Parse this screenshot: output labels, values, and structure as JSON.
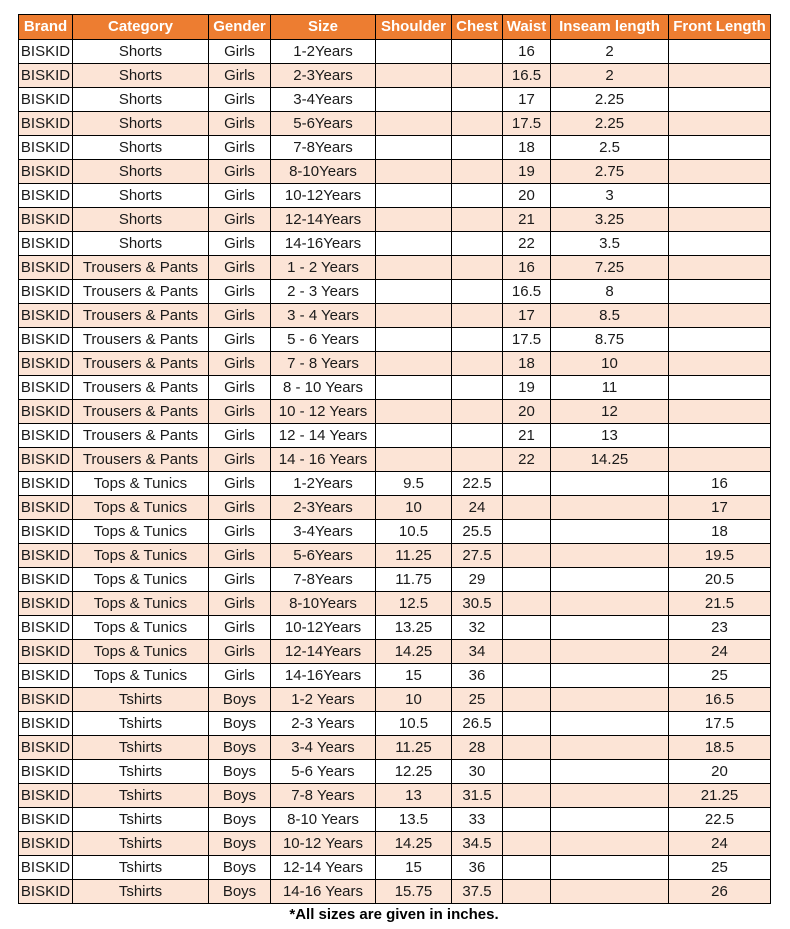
{
  "colors": {
    "header_bg": "#ED7D31",
    "header_text": "#FFFFFF",
    "row_alt_bg": "#FCE4D6",
    "row_bg": "#FFFFFF",
    "border": "#000000",
    "text": "#1A1A1A"
  },
  "footnote": "*All sizes are given in inches.",
  "table": {
    "columns": [
      "Brand",
      "Category",
      "Gender",
      "Size",
      "Shoulder",
      "Chest",
      "Waist",
      "Inseam length",
      "Front Length"
    ],
    "rows": [
      [
        "BISKID",
        "Shorts",
        "Girls",
        "1-2Years",
        "",
        "",
        "16",
        "2",
        ""
      ],
      [
        "BISKID",
        "Shorts",
        "Girls",
        "2-3Years",
        "",
        "",
        "16.5",
        "2",
        ""
      ],
      [
        "BISKID",
        "Shorts",
        "Girls",
        "3-4Years",
        "",
        "",
        "17",
        "2.25",
        ""
      ],
      [
        "BISKID",
        "Shorts",
        "Girls",
        "5-6Years",
        "",
        "",
        "17.5",
        "2.25",
        ""
      ],
      [
        "BISKID",
        "Shorts",
        "Girls",
        "7-8Years",
        "",
        "",
        "18",
        "2.5",
        ""
      ],
      [
        "BISKID",
        "Shorts",
        "Girls",
        "8-10Years",
        "",
        "",
        "19",
        "2.75",
        ""
      ],
      [
        "BISKID",
        "Shorts",
        "Girls",
        "10-12Years",
        "",
        "",
        "20",
        "3",
        ""
      ],
      [
        "BISKID",
        "Shorts",
        "Girls",
        "12-14Years",
        "",
        "",
        "21",
        "3.25",
        ""
      ],
      [
        "BISKID",
        "Shorts",
        "Girls",
        "14-16Years",
        "",
        "",
        "22",
        "3.5",
        ""
      ],
      [
        "BISKID",
        "Trousers & Pants",
        "Girls",
        "1 - 2 Years",
        "",
        "",
        "16",
        "7.25",
        ""
      ],
      [
        "BISKID",
        "Trousers & Pants",
        "Girls",
        "2 - 3 Years",
        "",
        "",
        "16.5",
        "8",
        ""
      ],
      [
        "BISKID",
        "Trousers & Pants",
        "Girls",
        "3 - 4 Years",
        "",
        "",
        "17",
        "8.5",
        ""
      ],
      [
        "BISKID",
        "Trousers & Pants",
        "Girls",
        "5 - 6 Years",
        "",
        "",
        "17.5",
        "8.75",
        ""
      ],
      [
        "BISKID",
        "Trousers & Pants",
        "Girls",
        "7 - 8 Years",
        "",
        "",
        "18",
        "10",
        ""
      ],
      [
        "BISKID",
        "Trousers & Pants",
        "Girls",
        "8 - 10 Years",
        "",
        "",
        "19",
        "11",
        ""
      ],
      [
        "BISKID",
        "Trousers & Pants",
        "Girls",
        "10 - 12 Years",
        "",
        "",
        "20",
        "12",
        ""
      ],
      [
        "BISKID",
        "Trousers & Pants",
        "Girls",
        "12 - 14 Years",
        "",
        "",
        "21",
        "13",
        ""
      ],
      [
        "BISKID",
        "Trousers & Pants",
        "Girls",
        "14 - 16 Years",
        "",
        "",
        "22",
        "14.25",
        ""
      ],
      [
        "BISKID",
        "Tops & Tunics",
        "Girls",
        "1-2Years",
        "9.5",
        "22.5",
        "",
        "",
        "16"
      ],
      [
        "BISKID",
        "Tops & Tunics",
        "Girls",
        "2-3Years",
        "10",
        "24",
        "",
        "",
        "17"
      ],
      [
        "BISKID",
        "Tops & Tunics",
        "Girls",
        "3-4Years",
        "10.5",
        "25.5",
        "",
        "",
        "18"
      ],
      [
        "BISKID",
        "Tops & Tunics",
        "Girls",
        "5-6Years",
        "11.25",
        "27.5",
        "",
        "",
        "19.5"
      ],
      [
        "BISKID",
        "Tops & Tunics",
        "Girls",
        "7-8Years",
        "11.75",
        "29",
        "",
        "",
        "20.5"
      ],
      [
        "BISKID",
        "Tops & Tunics",
        "Girls",
        "8-10Years",
        "12.5",
        "30.5",
        "",
        "",
        "21.5"
      ],
      [
        "BISKID",
        "Tops & Tunics",
        "Girls",
        "10-12Years",
        "13.25",
        "32",
        "",
        "",
        "23"
      ],
      [
        "BISKID",
        "Tops & Tunics",
        "Girls",
        "12-14Years",
        "14.25",
        "34",
        "",
        "",
        "24"
      ],
      [
        "BISKID",
        "Tops & Tunics",
        "Girls",
        "14-16Years",
        "15",
        "36",
        "",
        "",
        "25"
      ],
      [
        "BISKID",
        "Tshirts",
        "Boys",
        "1-2 Years",
        "10",
        "25",
        "",
        "",
        "16.5"
      ],
      [
        "BISKID",
        "Tshirts",
        "Boys",
        "2-3 Years",
        "10.5",
        "26.5",
        "",
        "",
        "17.5"
      ],
      [
        "BISKID",
        "Tshirts",
        "Boys",
        "3-4 Years",
        "11.25",
        "28",
        "",
        "",
        "18.5"
      ],
      [
        "BISKID",
        "Tshirts",
        "Boys",
        "5-6 Years",
        "12.25",
        "30",
        "",
        "",
        "20"
      ],
      [
        "BISKID",
        "Tshirts",
        "Boys",
        "7-8 Years",
        "13",
        "31.5",
        "",
        "",
        "21.25"
      ],
      [
        "BISKID",
        "Tshirts",
        "Boys",
        "8-10 Years",
        "13.5",
        "33",
        "",
        "",
        "22.5"
      ],
      [
        "BISKID",
        "Tshirts",
        "Boys",
        "10-12 Years",
        "14.25",
        "34.5",
        "",
        "",
        "24"
      ],
      [
        "BISKID",
        "Tshirts",
        "Boys",
        "12-14 Years",
        "15",
        "36",
        "",
        "",
        "25"
      ],
      [
        "BISKID",
        "Tshirts",
        "Boys",
        "14-16 Years",
        "15.75",
        "37.5",
        "",
        "",
        "26"
      ]
    ]
  }
}
